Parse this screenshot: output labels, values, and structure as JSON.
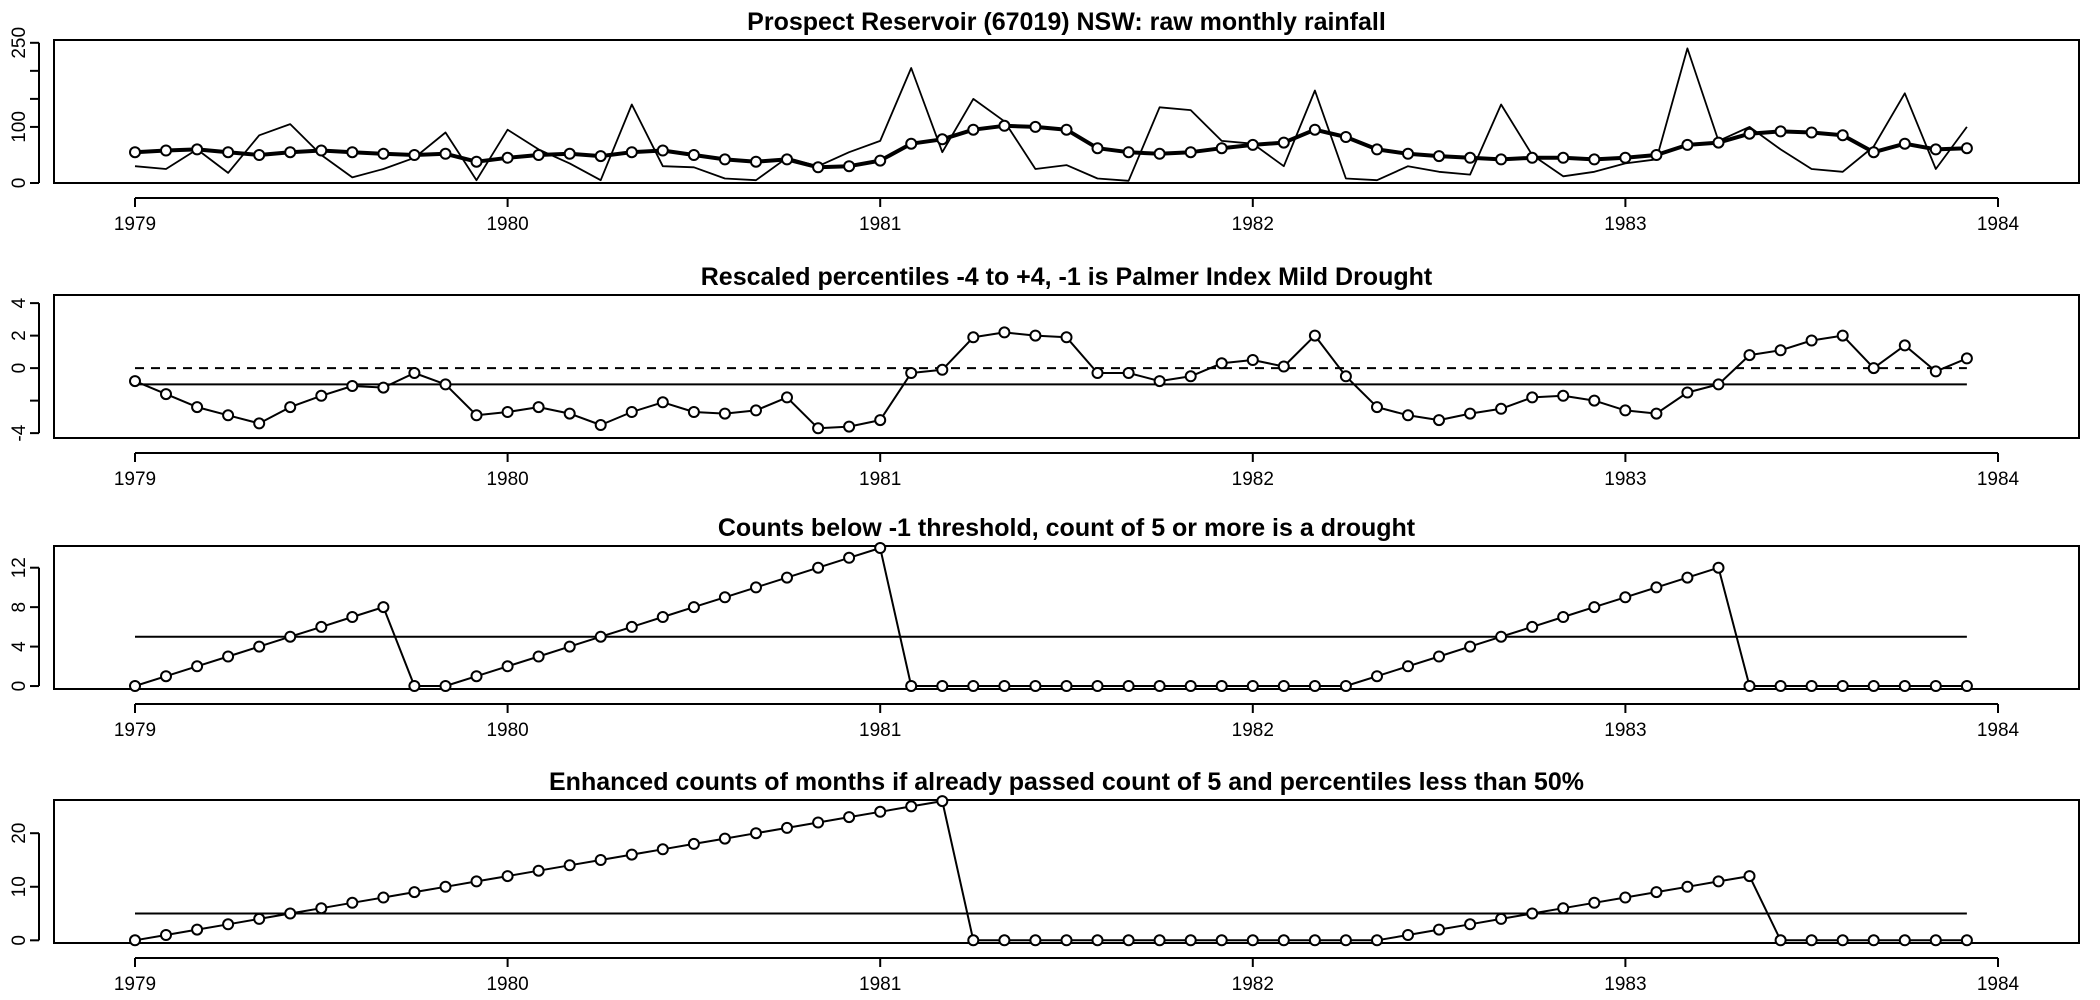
{
  "chart_data": [
    {
      "type": "line",
      "title": "Prospect Reservoir (67019) NSW: raw monthly rainfall",
      "xlabel": "",
      "ylabel": "",
      "x_ticks": [
        "1979",
        "1980",
        "1981",
        "1982",
        "1983",
        "1984"
      ],
      "x_range": [
        1979,
        1984
      ],
      "y_ticks": [
        0,
        100,
        150,
        200,
        250
      ],
      "y_tick_labels": [
        "0",
        "100",
        "",
        "",
        "250"
      ],
      "ylim": [
        0,
        255
      ],
      "x_start": 1979,
      "x_step": 0.08333,
      "series": [
        {
          "values": [
            30,
            25,
            60,
            18,
            85,
            105,
            50,
            10,
            25,
            45,
            90,
            5,
            95,
            60,
            35,
            5,
            140,
            30,
            28,
            8,
            5,
            45,
            30,
            55,
            75,
            205,
            55,
            150,
            110,
            25,
            32,
            8,
            4,
            135,
            130,
            75,
            70,
            30,
            165,
            8,
            5,
            30,
            20,
            15,
            140,
            50,
            12,
            20,
            35,
            42,
            240,
            75,
            100,
            60,
            25,
            20,
            65,
            160,
            25,
            100
          ],
          "markers": false,
          "weight": "thin"
        },
        {
          "values": [
            55,
            58,
            60,
            55,
            50,
            55,
            58,
            55,
            52,
            50,
            52,
            38,
            45,
            50,
            52,
            48,
            55,
            58,
            50,
            42,
            38,
            42,
            28,
            30,
            40,
            70,
            78,
            95,
            102,
            100,
            95,
            62,
            55,
            52,
            55,
            62,
            68,
            72,
            95,
            82,
            60,
            52,
            48,
            45,
            42,
            45,
            45,
            42,
            45,
            50,
            68,
            72,
            88,
            92,
            90,
            85,
            55,
            70,
            60,
            62
          ],
          "markers": true,
          "weight": "bold"
        }
      ]
    },
    {
      "type": "line",
      "title": "Rescaled percentiles -4 to +4, -1 is Palmer Index Mild Drought",
      "xlabel": "",
      "ylabel": "",
      "x_ticks": [
        "1979",
        "1980",
        "1981",
        "1982",
        "1983",
        "1984"
      ],
      "x_range": [
        1979,
        1984
      ],
      "y_ticks": [
        -4,
        -2,
        0,
        2,
        4
      ],
      "y_tick_labels": [
        "-4",
        "",
        "0",
        "2",
        "4"
      ],
      "ylim": [
        -4.3,
        4.5
      ],
      "x_start": 1979,
      "x_step": 0.08333,
      "reference_lines": [
        {
          "value": 0,
          "style": "dashed"
        },
        {
          "value": -1,
          "style": "solid"
        }
      ],
      "series": [
        {
          "values": [
            -0.8,
            -1.6,
            -2.4,
            -2.9,
            -3.4,
            -2.4,
            -1.7,
            -1.1,
            -1.2,
            -0.3,
            -1.0,
            -2.9,
            -2.7,
            -2.4,
            -2.8,
            -3.5,
            -2.7,
            -2.1,
            -2.7,
            -2.8,
            -2.6,
            -1.8,
            -3.7,
            -3.6,
            -3.2,
            -0.3,
            -0.1,
            1.9,
            2.2,
            2.0,
            1.9,
            -0.3,
            -0.3,
            -0.8,
            -0.5,
            0.3,
            0.5,
            0.1,
            2.0,
            -0.5,
            -2.4,
            -2.9,
            -3.2,
            -2.8,
            -2.5,
            -1.8,
            -1.7,
            -2.0,
            -2.6,
            -2.8,
            -1.5,
            -1.0,
            0.8,
            1.1,
            1.7,
            2.0,
            0.0,
            1.4,
            -0.2,
            0.6
          ],
          "markers": true,
          "weight": "normal"
        }
      ]
    },
    {
      "type": "line",
      "title": "Counts below -1 threshold, count of 5 or more is a drought",
      "xlabel": "",
      "ylabel": "",
      "x_ticks": [
        "1979",
        "1980",
        "1981",
        "1982",
        "1983",
        "1984"
      ],
      "x_range": [
        1979,
        1984
      ],
      "y_ticks": [
        0,
        4,
        8,
        12
      ],
      "y_tick_labels": [
        "0",
        "4",
        "8",
        "12"
      ],
      "ylim": [
        -0.3,
        14.2
      ],
      "x_start": 1979,
      "x_step": 0.08333,
      "reference_lines": [
        {
          "value": 5,
          "style": "solid"
        }
      ],
      "series": [
        {
          "values": [
            0,
            1,
            2,
            3,
            4,
            5,
            6,
            7,
            8,
            0,
            0,
            1,
            2,
            3,
            4,
            5,
            6,
            7,
            8,
            9,
            10,
            11,
            12,
            13,
            14,
            0,
            0,
            0,
            0,
            0,
            0,
            0,
            0,
            0,
            0,
            0,
            0,
            0,
            0,
            0,
            1,
            2,
            3,
            4,
            5,
            6,
            7,
            8,
            9,
            10,
            11,
            12,
            0,
            0,
            0,
            0,
            0,
            0,
            0,
            0
          ],
          "markers": true,
          "weight": "normal"
        }
      ]
    },
    {
      "type": "line",
      "title": "Enhanced counts of months if already passed count of 5 and percentiles less than 50%",
      "xlabel": "",
      "ylabel": "",
      "x_ticks": [
        "1979",
        "1980",
        "1981",
        "1982",
        "1983",
        "1984"
      ],
      "x_range": [
        1979,
        1984
      ],
      "y_ticks": [
        0,
        10,
        20
      ],
      "y_tick_labels": [
        "0",
        "10",
        "20"
      ],
      "ylim": [
        -0.5,
        26.2
      ],
      "x_start": 1979,
      "x_step": 0.08333,
      "reference_lines": [
        {
          "value": 5,
          "style": "solid"
        }
      ],
      "series": [
        {
          "values": [
            0,
            1,
            2,
            3,
            4,
            5,
            6,
            7,
            8,
            9,
            10,
            11,
            12,
            13,
            14,
            15,
            16,
            17,
            18,
            19,
            20,
            21,
            22,
            23,
            24,
            25,
            26,
            0,
            0,
            0,
            0,
            0,
            0,
            0,
            0,
            0,
            0,
            0,
            0,
            0,
            0,
            1,
            2,
            3,
            4,
            5,
            6,
            7,
            8,
            9,
            10,
            11,
            12,
            0,
            0,
            0,
            0,
            0,
            0,
            0
          ],
          "markers": true,
          "weight": "normal"
        }
      ]
    }
  ]
}
